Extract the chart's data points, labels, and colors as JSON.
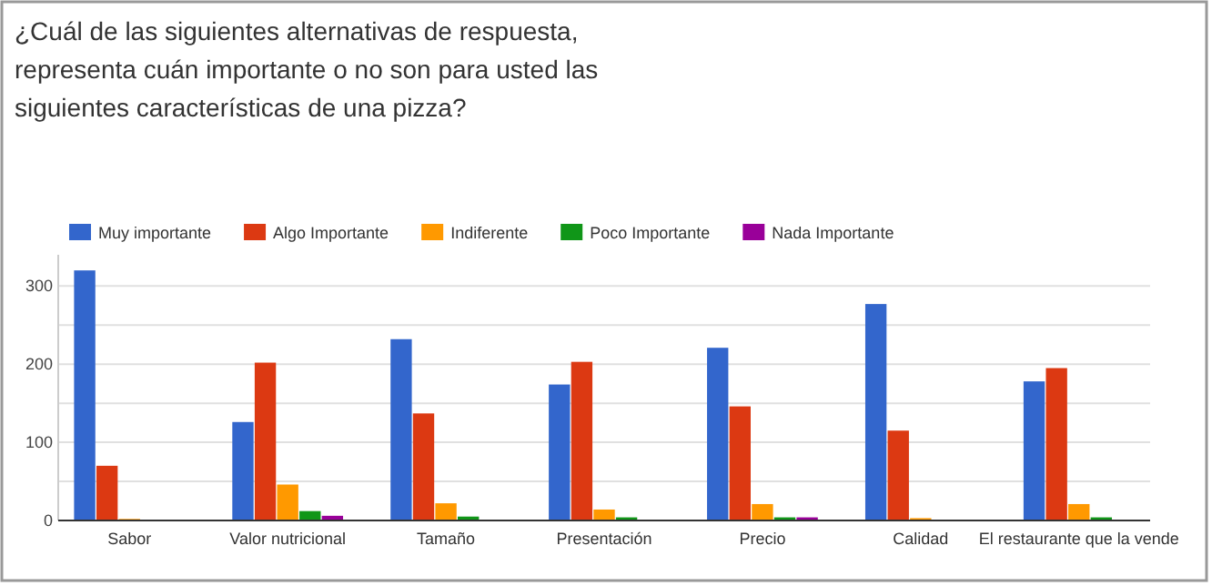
{
  "chart_data": {
    "type": "bar",
    "title": "¿Cuál de las siguientes alternativas de respuesta, representa cuán importante o no son para usted las siguientes características de una pizza?",
    "categories": [
      "Sabor",
      "Valor nutricional",
      "Tamaño",
      "Presentación",
      "Precio",
      "Calidad",
      "El restaurante que la vende"
    ],
    "series": [
      {
        "name": "Muy importante",
        "color": "#3366cc",
        "values": [
          320,
          126,
          232,
          174,
          221,
          277,
          178
        ]
      },
      {
        "name": "Algo Importante",
        "color": "#dc3912",
        "values": [
          70,
          202,
          137,
          203,
          146,
          115,
          195
        ]
      },
      {
        "name": "Indiferente",
        "color": "#ff9900",
        "values": [
          2,
          46,
          22,
          14,
          21,
          3,
          21
        ]
      },
      {
        "name": "Poco Importante",
        "color": "#109618",
        "values": [
          1,
          12,
          5,
          4,
          4,
          0,
          4
        ]
      },
      {
        "name": "Nada Importante",
        "color": "#990099",
        "values": [
          1,
          6,
          0,
          0,
          4,
          0,
          0
        ]
      }
    ],
    "ylim": [
      0,
      340
    ],
    "yticks": [
      0,
      {
        "value": 50,
        "label": null
      },
      100,
      {
        "value": 150,
        "label": null
      },
      200,
      {
        "value": 250,
        "label": null
      },
      300
    ],
    "grid": "y",
    "legend": "top left"
  }
}
